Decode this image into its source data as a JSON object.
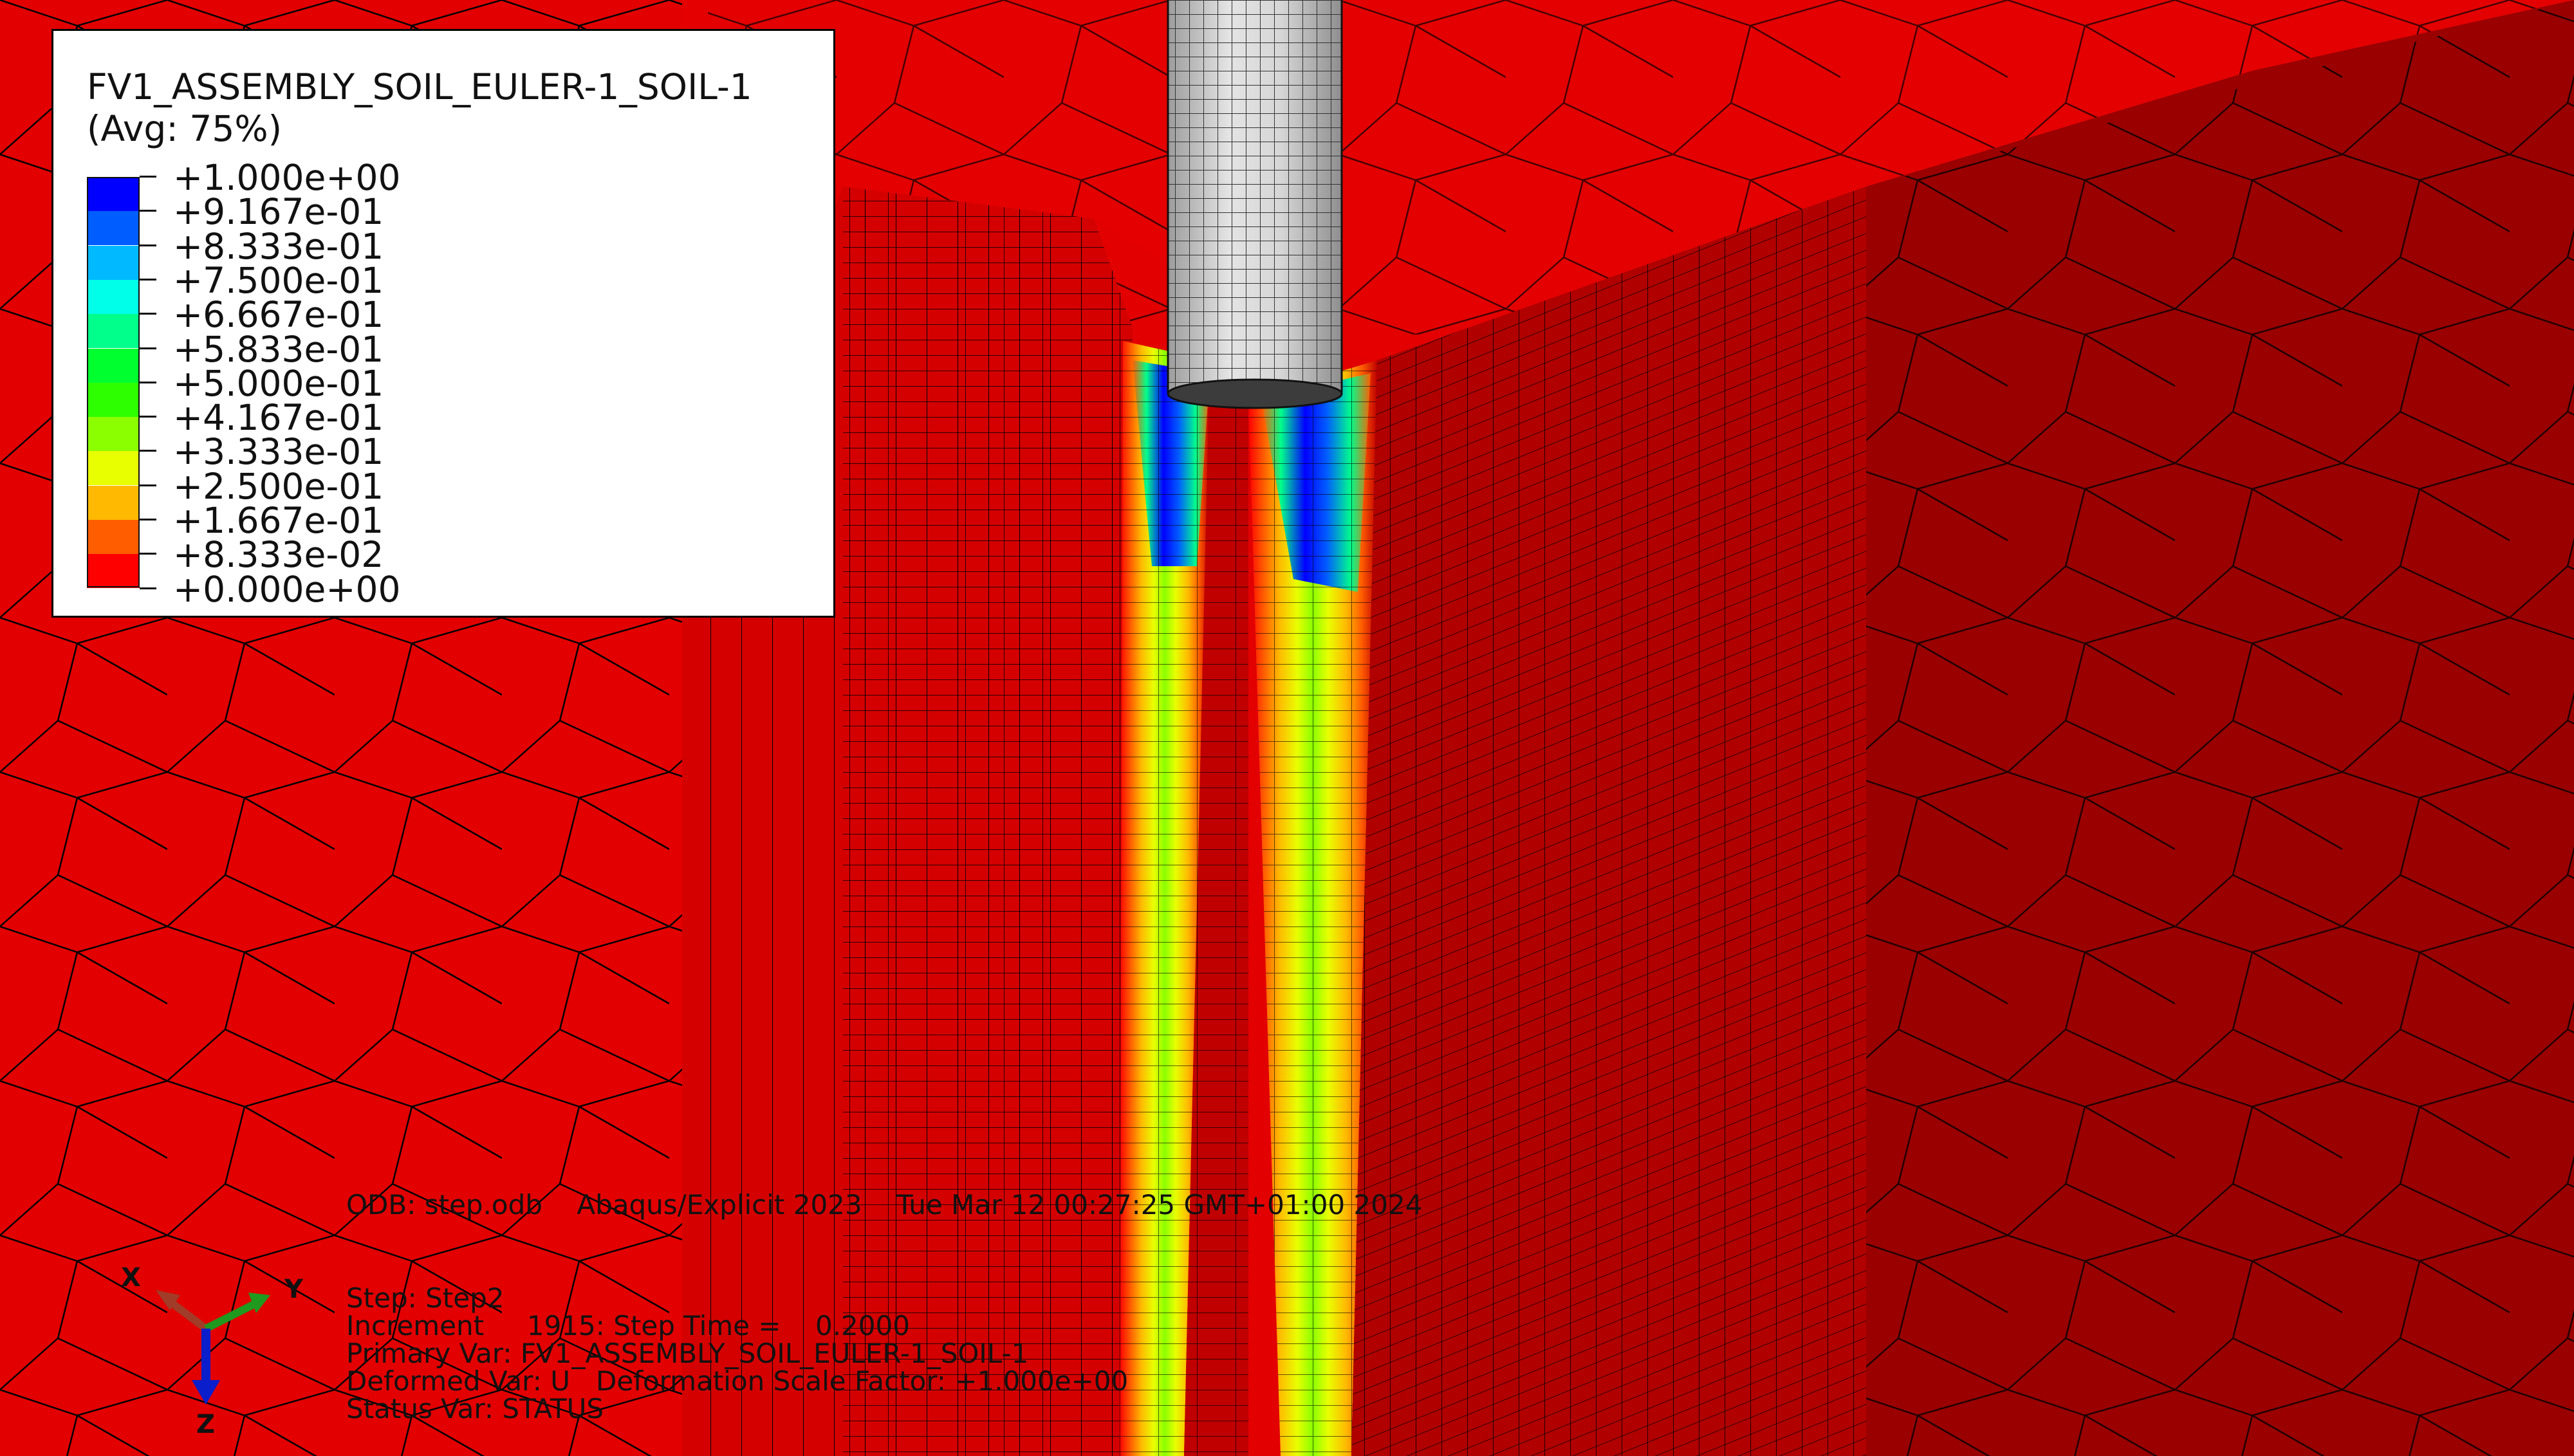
{
  "legend": {
    "title": "FV1_ASSEMBLY_SOIL_EULER-1_SOIL-1",
    "subtitle": "(Avg: 75%)",
    "levels": [
      {
        "label": "+1.000e+00",
        "color": "#0000ff"
      },
      {
        "label": "+9.167e-01",
        "color": "#005dff"
      },
      {
        "label": "+8.333e-01",
        "color": "#00b9ff"
      },
      {
        "label": "+7.500e-01",
        "color": "#00ffe8"
      },
      {
        "label": "+6.667e-01",
        "color": "#00ff8b"
      },
      {
        "label": "+5.833e-01",
        "color": "#00ff2e"
      },
      {
        "label": "+5.000e-01",
        "color": "#2eff00"
      },
      {
        "label": "+4.167e-01",
        "color": "#8bff00"
      },
      {
        "label": "+3.333e-01",
        "color": "#e8ff00"
      },
      {
        "label": "+2.500e-01",
        "color": "#ffb900"
      },
      {
        "label": "+1.667e-01",
        "color": "#ff5d00"
      },
      {
        "label": "+8.333e-02",
        "color": "#ff0000"
      },
      {
        "label": "+0.000e+00",
        "color": null
      }
    ]
  },
  "info": {
    "odb_line": "ODB: step.odb    Abaqus/Explicit 2023    Tue Mar 12 00:27:25 GMT+01:00 2024",
    "step": "Step: Step2",
    "increment": "Increment     1915: Step Time =    0.2000",
    "primary_var": "Primary Var: FV1_ASSEMBLY_SOIL_EULER-1_SOIL-1",
    "deformed_var": "Deformed Var: U   Deformation Scale Factor: +1.000e+00",
    "status_var": "Status Var: STATUS"
  },
  "triad": {
    "x_label": "X",
    "y_label": "Y",
    "z_label": "Z"
  },
  "colors": {
    "soil_top": "#e40000",
    "soil_side_dark": "#9a0000",
    "soil_side_mid": "#c00000",
    "pile": "#cfcfcf"
  }
}
